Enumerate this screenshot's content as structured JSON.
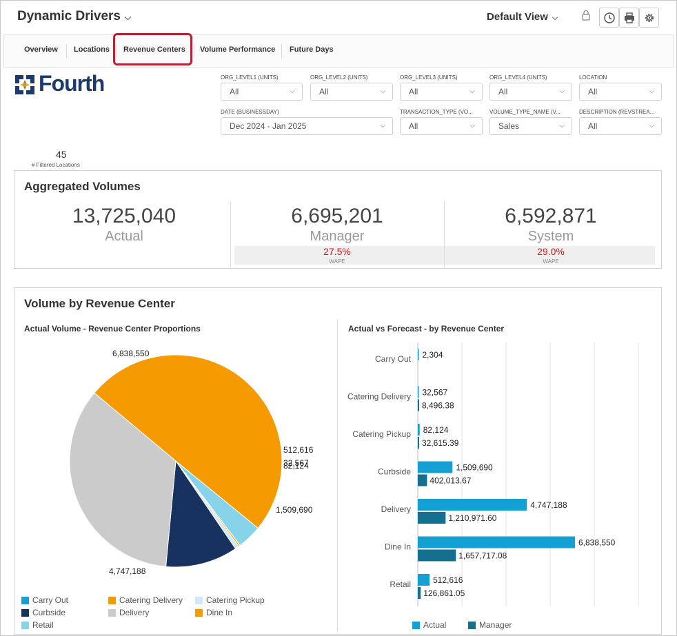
{
  "header": {
    "app_title": "Dynamic Drivers",
    "view_label": "Default View",
    "icons": [
      "lock-icon",
      "clock-icon",
      "print-icon",
      "gear-icon"
    ]
  },
  "tabs": [
    {
      "label": "Overview"
    },
    {
      "label": "Locations"
    },
    {
      "label": "Revenue Centers",
      "active": true
    },
    {
      "label": "Volume Performance"
    },
    {
      "label": "Future Days"
    }
  ],
  "logo": {
    "text": "Fourth"
  },
  "filters": [
    {
      "label": "ORG_LEVEL1 (UNITS)",
      "value": "All"
    },
    {
      "label": "ORG_LEVEL2 (UNITS)",
      "value": "All"
    },
    {
      "label": "ORG_LEVEL3 (UNITS)",
      "value": "All"
    },
    {
      "label": "ORG_LEVEL4 (UNITS)",
      "value": "All"
    },
    {
      "label": "LOCATION",
      "value": "All"
    },
    {
      "label": "DATE (BUSINESSDAY)",
      "value": "Dec 2024 - Jan 2025"
    },
    {
      "label": "TRANSACTION_TYPE (VO...",
      "value": "All"
    },
    {
      "label": "VOLUME_TYPE_NAME (V...",
      "value": "Sales"
    },
    {
      "label": "DESCRIPTION (REVSTREA...",
      "value": "All"
    }
  ],
  "filtered_locations": {
    "value": "45",
    "label": "# Filtered Locations"
  },
  "aggregated": {
    "title": "Aggregated Volumes",
    "actual": {
      "value": "13,725,040",
      "label": "Actual"
    },
    "manager": {
      "value": "6,695,201",
      "label": "Manager",
      "wape": "27.5%",
      "wape_label": "WAPE"
    },
    "system": {
      "value": "6,592,871",
      "label": "System",
      "wape": "29.0%",
      "wape_label": "WAPE"
    }
  },
  "volume_section": {
    "title": "Volume by Revenue Center",
    "pie_title": "Actual Volume - Revenue Center Proportions",
    "bar_title": "Actual vs Forecast - by Revenue Center"
  },
  "colors": {
    "Carry Out": "#1a9fd4",
    "Catering Delivery": "#f59a00",
    "Catering Pickup": "#cfe8f5",
    "Curbside": "#17325e",
    "Delivery": "#cbcbcb",
    "Dine In": "#f59a00",
    "Retail": "#87d3ea",
    "actual": "#14a0d2",
    "manager": "#14708e",
    "wape": "#d21a1a"
  },
  "chart_data": [
    {
      "type": "pie",
      "title": "Actual Volume - Revenue Center Proportions",
      "slices": [
        {
          "label": "Carry Out",
          "value": 2304
        },
        {
          "label": "Catering Delivery",
          "value": 32567
        },
        {
          "label": "Catering Pickup",
          "value": 82124
        },
        {
          "label": "Curbside",
          "value": 1509690
        },
        {
          "label": "Delivery",
          "value": 4747188
        },
        {
          "label": "Dine In",
          "value": 6838550
        },
        {
          "label": "Retail",
          "value": 512616
        }
      ],
      "data_labels": {
        "Dine In": "6,838,550",
        "Retail": "512,616",
        "Catering Delivery": "32,567",
        "Catering Pickup": "82,124",
        "Curbside": "1,509,690",
        "Delivery": "4,747,188"
      },
      "legend": [
        "Carry Out",
        "Catering Delivery",
        "Catering Pickup",
        "Curbside",
        "Delivery",
        "Dine In",
        "Retail"
      ]
    },
    {
      "type": "bar",
      "orientation": "horizontal",
      "title": "Actual vs Forecast - by Revenue Center",
      "categories": [
        "Carry Out",
        "Catering Delivery",
        "Catering Pickup",
        "Curbside",
        "Delivery",
        "Dine In",
        "Retail"
      ],
      "series": [
        {
          "name": "Actual",
          "values": [
            2304,
            32567,
            82124,
            1509690,
            4747188,
            6838550,
            512616
          ],
          "labels": [
            "2,304",
            "32,567",
            "82,124",
            "1,509,690",
            "4,747,188",
            "6,838,550",
            "512,616"
          ]
        },
        {
          "name": "Manager",
          "values": [
            null,
            8496.38,
            32615.39,
            402013.67,
            1210971.6,
            1657717.08,
            126861.05
          ],
          "labels": [
            "",
            "8,496.38",
            "32,615.39",
            "402,013.67",
            "1,210,971.60",
            "1,657,717.08",
            "126,861.05"
          ]
        }
      ],
      "xlim": [
        0,
        8000000
      ],
      "grid": true,
      "legend": "bottom"
    }
  ]
}
